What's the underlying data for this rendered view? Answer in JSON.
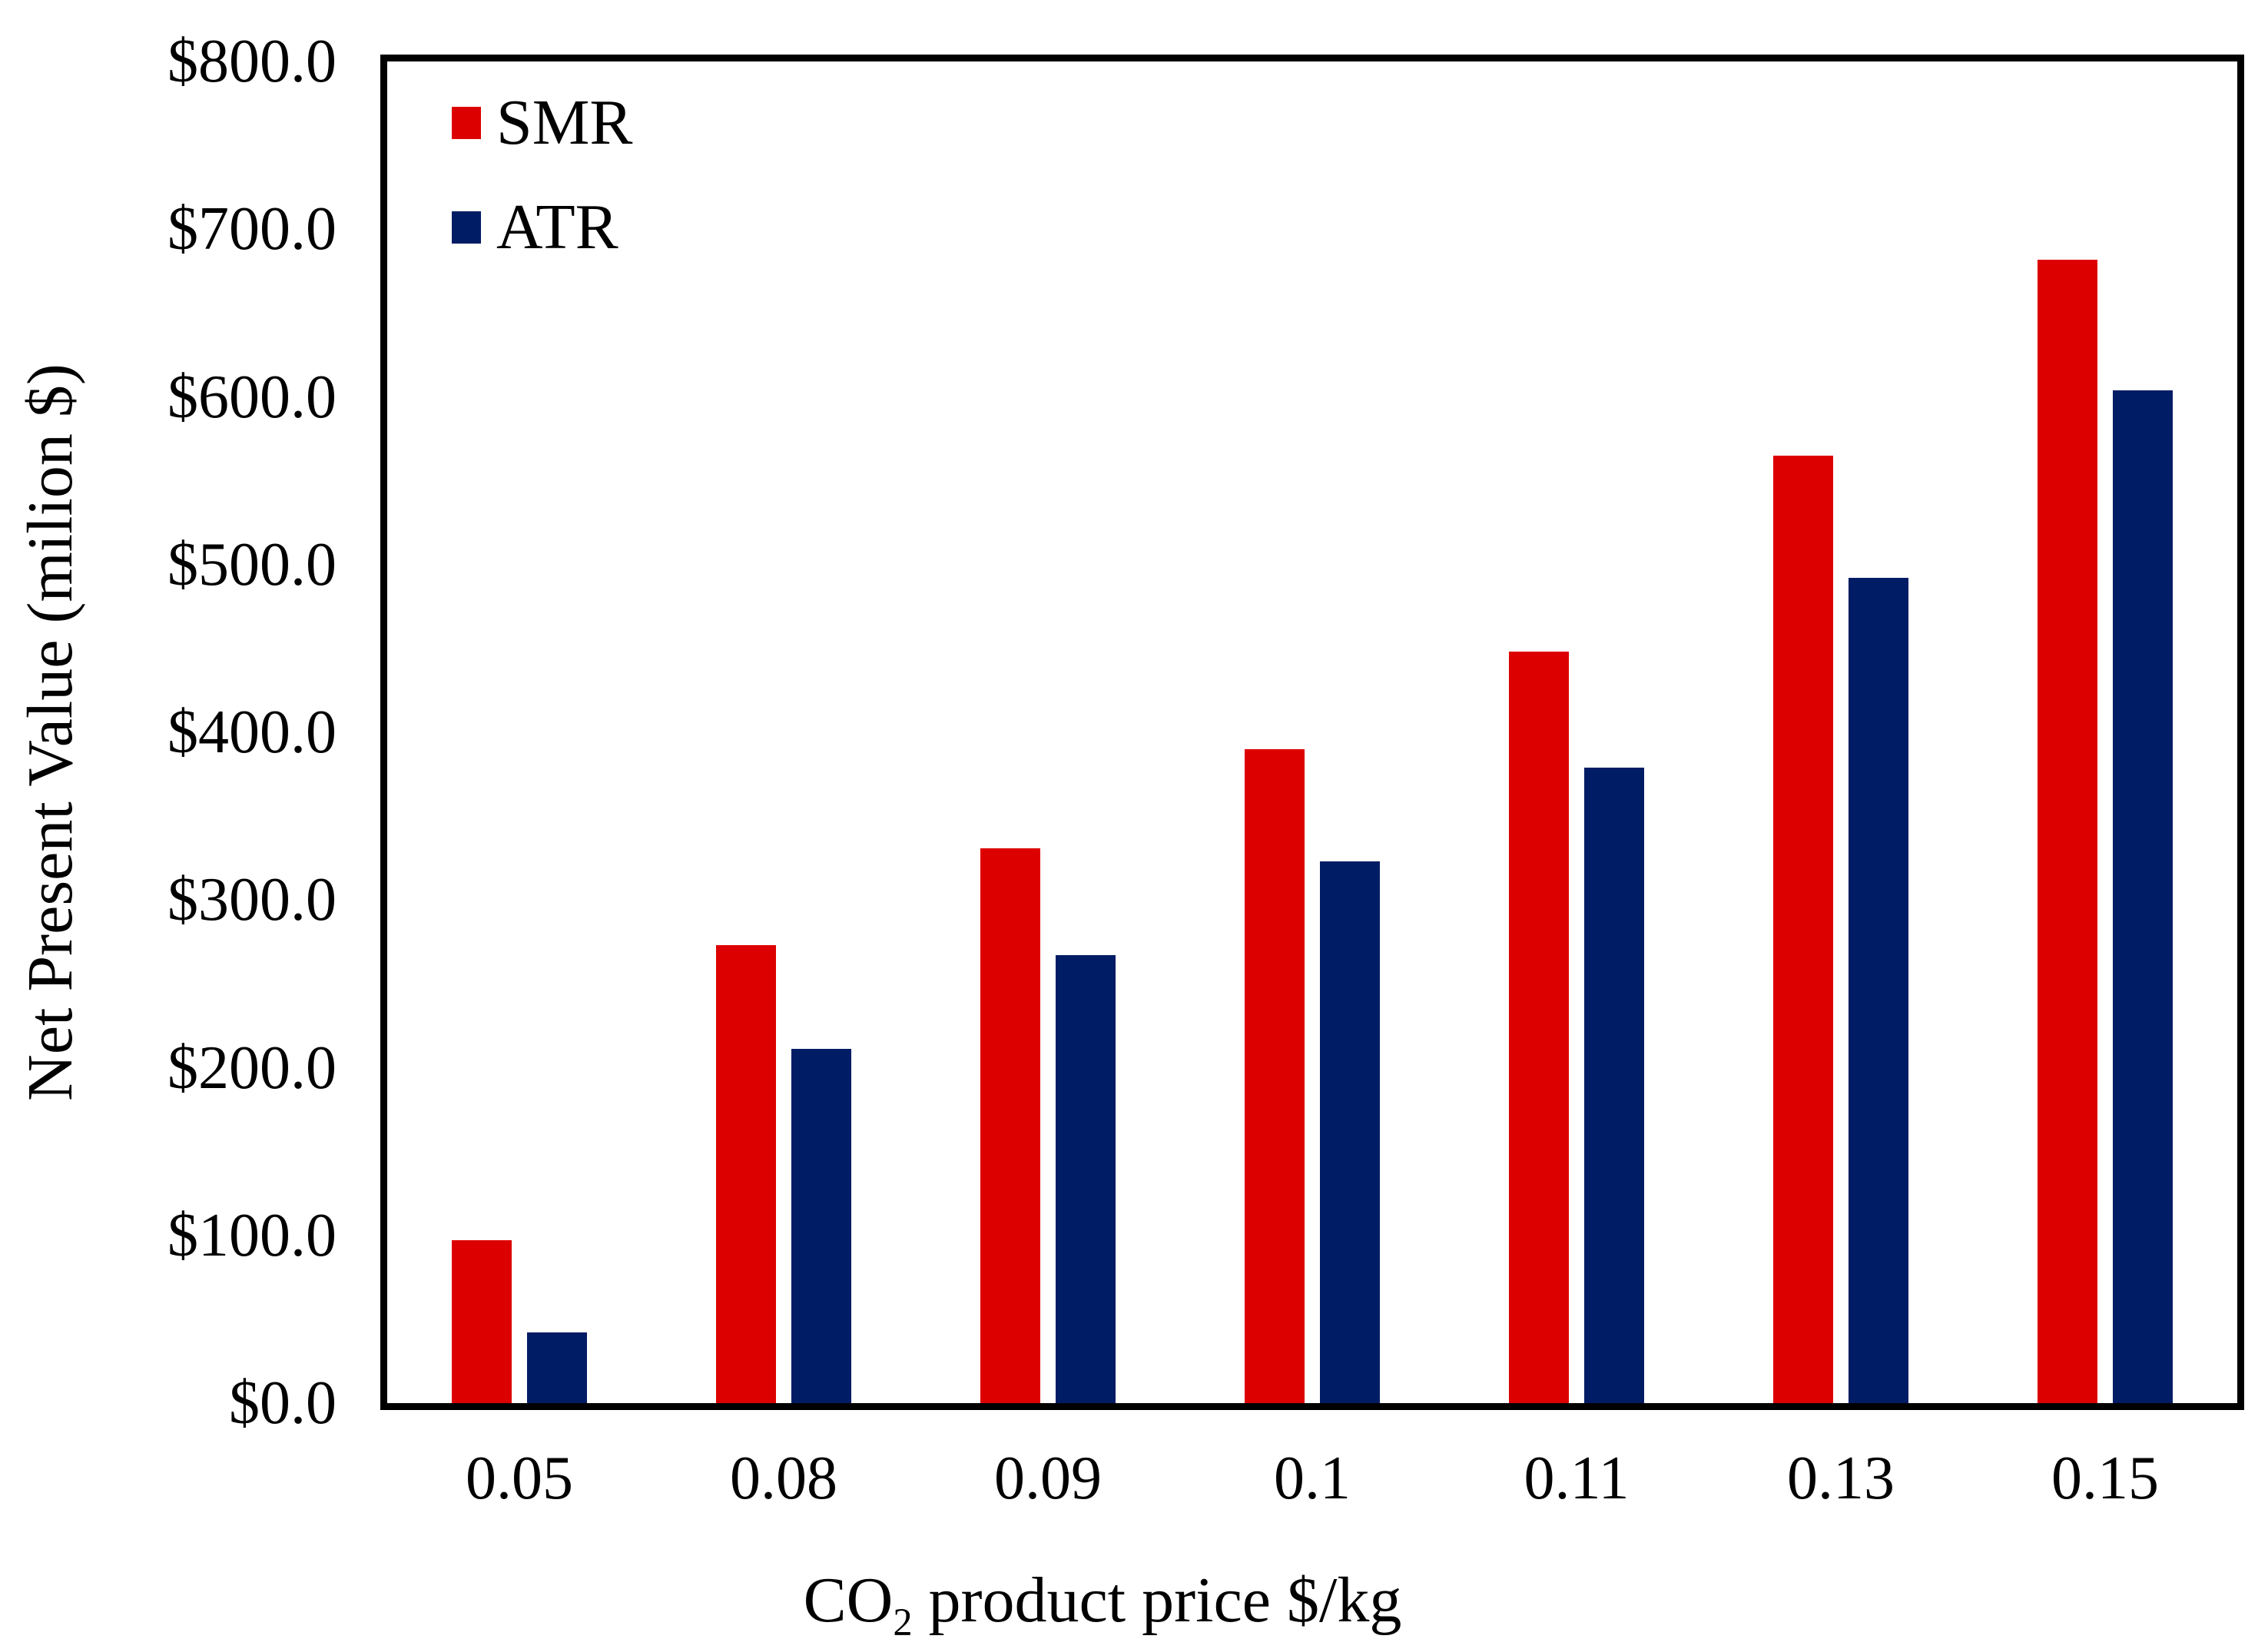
{
  "chart_data": {
    "type": "bar",
    "title": "",
    "categories": [
      "0.05",
      "0.08",
      "0.09",
      "0.1",
      "0.11",
      "0.13",
      "0.15"
    ],
    "series": [
      {
        "name": "SMR",
        "color": "#DD0000",
        "values": [
          97,
          273,
          331,
          390,
          448,
          565,
          682
        ]
      },
      {
        "name": "ATR",
        "color": "#001C64",
        "values": [
          42,
          211,
          267,
          323,
          379,
          492,
          604
        ]
      }
    ],
    "xlabel": "CO₂ product price $/kg",
    "ylabel": "Net Present Value (milion $)",
    "ylim": [
      0,
      800
    ],
    "ytick_step": 100,
    "ytick_labels": [
      "$0.0",
      "$100.0",
      "$200.0",
      "$300.0",
      "$400.0",
      "$500.0",
      "$600.0",
      "$700.0",
      "$800.0"
    ],
    "grid": false,
    "legend_position": "top-left-inside",
    "axis_color": "#000000"
  }
}
